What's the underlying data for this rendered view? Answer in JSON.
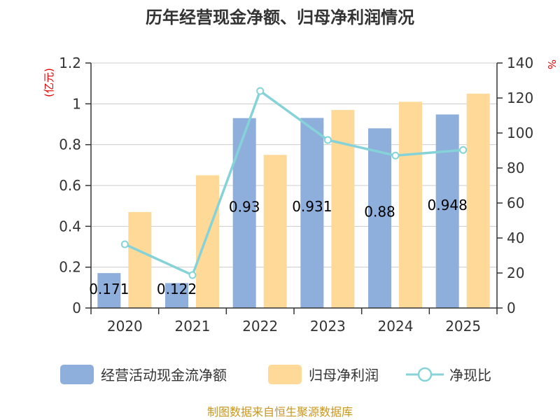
{
  "chart_data": {
    "type": "bar+line",
    "title": "历年经营现金净额、归母净利润情况",
    "categories": [
      "2020",
      "2021",
      "2022",
      "2023",
      "2024",
      "2025"
    ],
    "series": [
      {
        "name": "经营活动现金流净额",
        "type": "bar",
        "axis": "left",
        "values": [
          0.171,
          0.122,
          0.93,
          0.931,
          0.88,
          0.948
        ],
        "labels": [
          "0.171",
          "0.122",
          "0.93",
          "0.931",
          "0.88",
          "0.948"
        ]
      },
      {
        "name": "归母净利润",
        "type": "bar",
        "axis": "left",
        "values": [
          0.47,
          0.65,
          0.75,
          0.97,
          1.01,
          1.05
        ]
      },
      {
        "name": "净现比",
        "type": "line",
        "axis": "right",
        "values": [
          36.4,
          18.8,
          124.0,
          96.0,
          87.1,
          90.3
        ]
      }
    ],
    "yleft": {
      "label": "(亿元)",
      "ylim": [
        0,
        1.2
      ],
      "ticks": [
        "0",
        "0.2",
        "0.4",
        "0.6",
        "0.8",
        "1",
        "1.2"
      ]
    },
    "yright": {
      "label": "%",
      "ylim": [
        0,
        140
      ],
      "ticks": [
        "0",
        "20",
        "40",
        "60",
        "80",
        "100",
        "120",
        "140"
      ]
    },
    "grid": true,
    "legend": "bottom"
  },
  "colors": {
    "cash_bar": "#8eaedb",
    "profit_bar": "#ffd998",
    "ratio_line": "#85d3d8",
    "axis": "#333333",
    "grid": "#cccccc",
    "unit_text": "#e60000",
    "source_text": "#c8961e"
  },
  "source": "制图数据来自恒生聚源数据库"
}
